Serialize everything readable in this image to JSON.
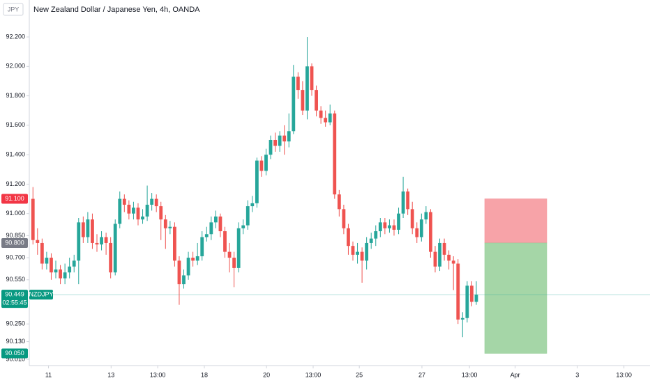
{
  "chart_data": {
    "type": "candlestick",
    "title": "New Zealand Dollar / Japanese Yen, 4h, OANDA",
    "currency": "JPY",
    "x": [
      0,
      1,
      2,
      3,
      4,
      5,
      6,
      7,
      8,
      9,
      10,
      11,
      12,
      13,
      14,
      15,
      16,
      17,
      18,
      19,
      20,
      21,
      22,
      23,
      24,
      25,
      26,
      27,
      28,
      29,
      30,
      31,
      32,
      33,
      34,
      35,
      36,
      37,
      38,
      39,
      40,
      41,
      42,
      43,
      44,
      45,
      46,
      47,
      48,
      49,
      50,
      51,
      52,
      53,
      54,
      55,
      56,
      57,
      58,
      59,
      60,
      61,
      62,
      63,
      64,
      65,
      66,
      67,
      68,
      69,
      70,
      71,
      72,
      73,
      74,
      75,
      76,
      77,
      78,
      79,
      80,
      81,
      82,
      83,
      84,
      85,
      86,
      87,
      88,
      89,
      90,
      91,
      92,
      93,
      94,
      95,
      96,
      97
    ],
    "open": [
      91.1,
      90.82,
      90.8,
      90.66,
      90.7,
      90.6,
      90.62,
      90.56,
      90.6,
      90.64,
      90.68,
      90.94,
      90.84,
      90.96,
      90.8,
      90.79,
      90.84,
      90.8,
      90.6,
      90.93,
      91.1,
      91.06,
      91.0,
      91.04,
      90.96,
      90.98,
      91.06,
      91.1,
      91.05,
      90.96,
      90.9,
      90.91,
      90.68,
      90.52,
      90.58,
      90.7,
      90.68,
      90.71,
      90.84,
      90.86,
      90.94,
      90.98,
      90.88,
      90.74,
      90.7,
      90.63,
      90.9,
      90.92,
      91.05,
      91.07,
      91.36,
      91.29,
      91.4,
      91.5,
      91.46,
      91.53,
      91.49,
      91.56,
      91.93,
      91.84,
      91.7,
      92.0,
      91.84,
      91.7,
      91.65,
      91.62,
      91.68,
      91.13,
      91.03,
      90.9,
      90.78,
      90.72,
      90.74,
      90.68,
      90.8,
      90.83,
      90.88,
      90.94,
      90.9,
      90.92,
      90.89,
      91.0,
      91.15,
      91.03,
      90.9,
      90.84,
      90.96,
      91.01,
      90.74,
      90.64,
      90.8,
      90.72,
      90.68,
      90.66,
      90.28,
      90.29,
      90.51,
      90.4
    ],
    "high": [
      91.18,
      90.9,
      90.83,
      90.74,
      90.73,
      90.68,
      90.65,
      90.66,
      90.7,
      90.72,
      90.97,
      90.98,
      91.01,
      91.0,
      90.86,
      90.88,
      90.87,
      90.84,
      90.96,
      91.15,
      91.13,
      91.09,
      91.08,
      91.07,
      91.03,
      91.19,
      91.14,
      91.13,
      91.08,
      90.99,
      90.95,
      90.94,
      90.71,
      90.62,
      90.74,
      90.74,
      90.8,
      90.88,
      90.91,
      90.98,
      91.02,
      91.0,
      90.91,
      90.8,
      90.74,
      90.94,
      90.96,
      91.09,
      91.12,
      91.38,
      91.39,
      91.44,
      91.53,
      91.55,
      91.56,
      91.6,
      91.68,
      92.01,
      91.96,
      91.9,
      92.2,
      92.02,
      91.87,
      91.73,
      91.7,
      91.74,
      91.7,
      91.16,
      91.06,
      90.93,
      90.81,
      90.8,
      90.77,
      90.84,
      90.87,
      90.92,
      90.97,
      90.97,
      90.96,
      90.96,
      91.04,
      91.25,
      91.17,
      91.08,
      90.94,
      91.0,
      91.05,
      91.03,
      90.78,
      90.83,
      90.83,
      90.75,
      90.71,
      90.69,
      90.33,
      90.54,
      90.54,
      90.54
    ],
    "low": [
      90.79,
      90.72,
      90.62,
      90.62,
      90.55,
      90.56,
      90.52,
      90.52,
      90.56,
      90.6,
      90.52,
      90.8,
      90.8,
      90.76,
      90.74,
      90.75,
      90.72,
      90.56,
      90.58,
      90.9,
      91.01,
      90.96,
      90.96,
      90.92,
      90.93,
      90.95,
      91.02,
      91.01,
      90.82,
      90.76,
      90.86,
      90.64,
      90.38,
      90.49,
      90.55,
      90.64,
      90.65,
      90.68,
      90.81,
      90.82,
      90.9,
      90.84,
      90.7,
      90.6,
      90.5,
      90.6,
      90.86,
      90.89,
      91.01,
      91.04,
      91.25,
      91.26,
      91.37,
      91.42,
      91.42,
      91.4,
      91.45,
      91.54,
      91.78,
      91.67,
      91.64,
      91.8,
      91.66,
      91.61,
      91.59,
      91.6,
      91.1,
      90.98,
      90.86,
      90.72,
      90.68,
      90.66,
      90.53,
      90.62,
      90.76,
      90.78,
      90.84,
      90.86,
      90.87,
      90.85,
      90.86,
      90.97,
      90.99,
      90.86,
      90.8,
      90.81,
      90.93,
      90.7,
      90.6,
      90.61,
      90.68,
      90.62,
      90.48,
      90.25,
      90.16,
      90.26,
      90.37,
      90.38
    ],
    "close": [
      90.82,
      90.8,
      90.66,
      90.7,
      90.6,
      90.62,
      90.56,
      90.6,
      90.64,
      90.68,
      90.94,
      90.84,
      90.96,
      90.8,
      90.79,
      90.84,
      90.8,
      90.6,
      90.93,
      91.1,
      91.06,
      91.0,
      91.04,
      90.96,
      90.98,
      91.06,
      91.1,
      91.05,
      90.96,
      90.9,
      90.91,
      90.68,
      90.52,
      90.58,
      90.7,
      90.68,
      90.71,
      90.84,
      90.86,
      90.94,
      90.98,
      90.88,
      90.74,
      90.7,
      90.63,
      90.9,
      90.92,
      91.05,
      91.07,
      91.36,
      91.29,
      91.4,
      91.5,
      91.46,
      91.53,
      91.49,
      91.56,
      91.93,
      91.84,
      91.7,
      92.0,
      91.84,
      91.7,
      91.65,
      91.62,
      91.68,
      91.13,
      91.03,
      90.9,
      90.78,
      90.72,
      90.74,
      90.68,
      90.8,
      90.83,
      90.88,
      90.94,
      90.9,
      90.92,
      90.89,
      91.0,
      91.15,
      91.03,
      90.9,
      90.84,
      90.96,
      91.01,
      90.74,
      90.64,
      90.8,
      90.72,
      90.68,
      90.66,
      90.28,
      90.29,
      90.51,
      90.4,
      90.449
    ],
    "up_color": "#26a69a",
    "down_color": "#ef5350",
    "xlim": [
      -0.8,
      135
    ],
    "xticks": [
      {
        "value": 3.4,
        "label": "11"
      },
      {
        "value": 17.1,
        "label": "13"
      },
      {
        "value": 27.3,
        "label": "13:00"
      },
      {
        "value": 37.5,
        "label": "18"
      },
      {
        "value": 51.1,
        "label": "20"
      },
      {
        "value": 61.3,
        "label": "13:00"
      },
      {
        "value": 71.4,
        "label": "25"
      },
      {
        "value": 85.1,
        "label": "27"
      },
      {
        "value": 95.5,
        "label": "13:00"
      },
      {
        "value": 105.5,
        "label": "Apr"
      },
      {
        "value": 119.1,
        "label": "3"
      },
      {
        "value": 129.3,
        "label": "13:00"
      }
    ],
    "ylim": [
      89.967,
      92.451
    ],
    "yticks": [
      {
        "value": 92.2,
        "label": "92.200"
      },
      {
        "value": 92.0,
        "label": "92.000"
      },
      {
        "value": 91.8,
        "label": "91.800"
      },
      {
        "value": 91.6,
        "label": "91.600"
      },
      {
        "value": 91.4,
        "label": "91.400"
      },
      {
        "value": 91.2,
        "label": "91.200"
      },
      {
        "value": 91.0,
        "label": "91.000"
      },
      {
        "value": 90.85,
        "label": "90.850"
      },
      {
        "value": 90.7,
        "label": "90.700"
      },
      {
        "value": 90.55,
        "label": "90.550"
      },
      {
        "value": 90.25,
        "label": "90.250"
      },
      {
        "value": 90.13,
        "label": "90.130"
      },
      {
        "value": 90.01,
        "label": "90.010"
      }
    ],
    "current_price": {
      "value": 90.449,
      "label": "90.449"
    },
    "symbol": "NZDJPY",
    "countdown": "02:55:45",
    "position": {
      "stop": {
        "value": 91.1,
        "label": "91.100"
      },
      "entry": {
        "value": 90.8,
        "label": "90.800"
      },
      "target": {
        "value": 90.05,
        "label": "90.050"
      }
    }
  }
}
